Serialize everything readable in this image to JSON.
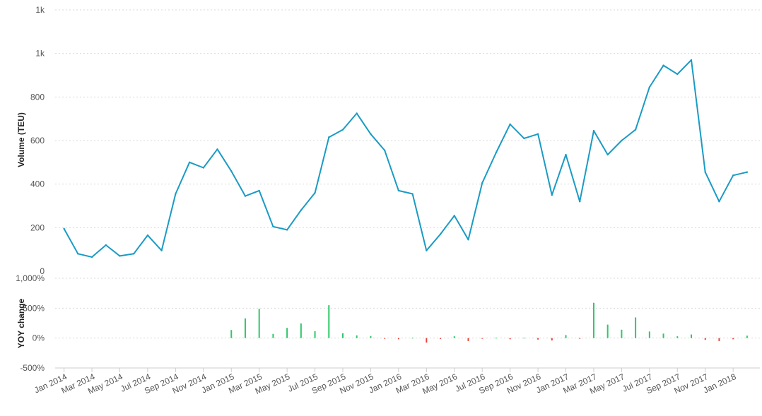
{
  "chart_data": [
    {
      "type": "line",
      "ylabel": "Volume (TEU)",
      "ylim": [
        0,
        1200
      ],
      "y_ticks": [
        200,
        400,
        600,
        800,
        1000,
        1200
      ],
      "y_tick_labels": [
        "200",
        "400",
        "600",
        "800",
        "1k",
        "1k"
      ],
      "grid": true,
      "color": "#1a9bc4",
      "x": [
        "2014-01",
        "2014-02",
        "2014-03",
        "2014-04",
        "2014-05",
        "2014-06",
        "2014-07",
        "2014-08",
        "2014-09",
        "2014-10",
        "2014-11",
        "2014-12",
        "2015-01",
        "2015-02",
        "2015-03",
        "2015-04",
        "2015-05",
        "2015-06",
        "2015-07",
        "2015-08",
        "2015-09",
        "2015-10",
        "2015-11",
        "2015-12",
        "2016-01",
        "2016-02",
        "2016-03",
        "2016-04",
        "2016-05",
        "2016-06",
        "2016-07",
        "2016-08",
        "2016-09",
        "2016-10",
        "2016-11",
        "2016-12",
        "2017-01",
        "2017-02",
        "2017-03",
        "2017-04",
        "2017-05",
        "2017-06",
        "2017-07",
        "2017-08",
        "2017-09",
        "2017-10",
        "2017-11",
        "2017-12",
        "2018-01",
        "2018-02"
      ],
      "values": [
        195,
        80,
        65,
        120,
        70,
        80,
        165,
        95,
        355,
        500,
        475,
        560,
        460,
        345,
        370,
        205,
        190,
        280,
        360,
        615,
        650,
        725,
        630,
        555,
        370,
        355,
        95,
        170,
        255,
        145,
        405,
        545,
        675,
        610,
        630,
        350,
        535,
        320,
        645,
        535,
        600,
        650,
        845,
        945,
        905,
        970,
        455,
        320,
        440,
        455
      ]
    },
    {
      "type": "bar",
      "ylabel": "YOY change",
      "ylim": [
        -500,
        1000
      ],
      "y_ticks": [
        -500,
        0,
        500,
        1000
      ],
      "y_tick_labels": [
        "-500%",
        "0%",
        "500%",
        "1,000%"
      ],
      "grid": true,
      "positive_color": "#2ec866",
      "negative_color": "#e8443a",
      "x_tick_labels": [
        "Jan 2014",
        "Mar 2014",
        "May 2014",
        "Jul 2014",
        "Sep 2014",
        "Nov 2014",
        "Jan 2015",
        "Mar 2015",
        "May 2015",
        "Jul 2015",
        "Sep 2015",
        "Nov 2015",
        "Jan 2016",
        "Mar 2016",
        "May 2016",
        "Jul 2016",
        "Sep 2016",
        "Nov 2016",
        "Jan 2017",
        "Mar 2017",
        "May 2017",
        "Jul 2017",
        "Sep 2017",
        "Nov 2017",
        "Jan 2018"
      ],
      "values": [
        null,
        null,
        null,
        null,
        null,
        null,
        null,
        null,
        null,
        null,
        null,
        null,
        135,
        330,
        490,
        70,
        170,
        245,
        115,
        550,
        80,
        45,
        35,
        -5,
        -20,
        5,
        -75,
        -15,
        30,
        -50,
        -5,
        5,
        -20,
        5,
        -25,
        -40,
        50,
        -10,
        590,
        225,
        140,
        345,
        110,
        75,
        30,
        60,
        -30,
        -50,
        -20,
        40
      ]
    }
  ]
}
